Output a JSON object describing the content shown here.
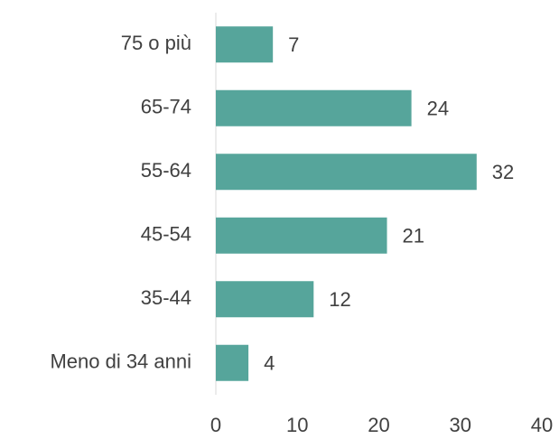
{
  "chart_data": {
    "type": "bar",
    "orientation": "horizontal",
    "categories": [
      "75 o più",
      "65-74",
      "55-64",
      "45-54",
      "35-44",
      "Meno di 34 anni"
    ],
    "values": [
      7,
      24,
      32,
      21,
      12,
      4
    ],
    "color": "#56a59b",
    "xlim": [
      0,
      40
    ],
    "xticks": [
      0,
      10,
      20,
      30,
      40
    ],
    "grid": false
  }
}
